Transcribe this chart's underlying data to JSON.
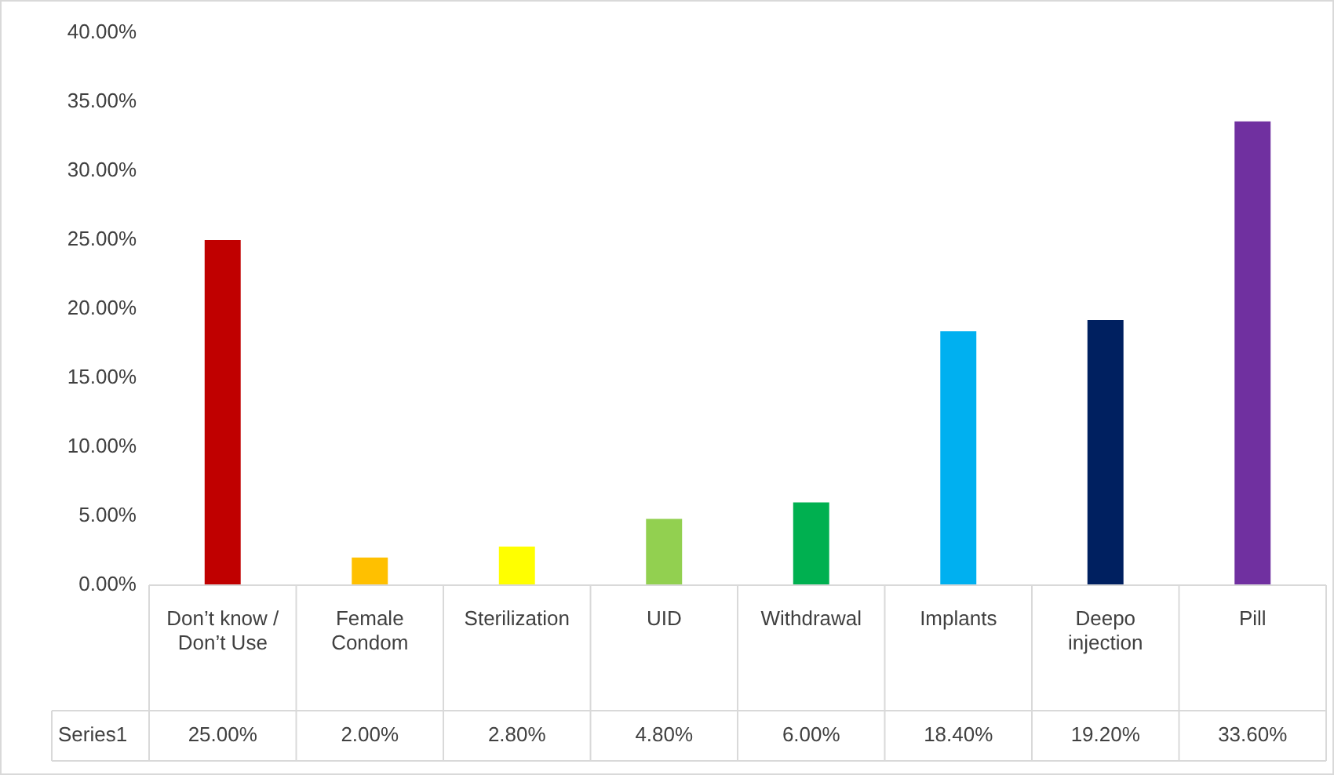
{
  "chart_data": {
    "type": "bar",
    "categories": [
      "Don’t know / Don’t Use",
      "Female Condom",
      "Sterilization",
      "UID",
      "Withdrawal",
      "Implants",
      "Deepo injection",
      "Pill"
    ],
    "series": [
      {
        "name": "Series1",
        "colors": [
          "#c00000",
          "#ffc000",
          "#ffff00",
          "#92d050",
          "#00b050",
          "#00b0f0",
          "#002060",
          "#7030a0"
        ],
        "values": [
          25,
          2,
          2.8,
          4.8,
          6,
          18.4,
          19.2,
          33.6
        ],
        "value_labels": [
          "25.00%",
          "2.00%",
          "2.80%",
          "4.80%",
          "6.00%",
          "18.40%",
          "19.20%",
          "33.60%"
        ]
      }
    ],
    "ylim": [
      0,
      40
    ],
    "yticks": [
      {
        "value": 0,
        "label": "0.00%"
      },
      {
        "value": 5,
        "label": "5.00%"
      },
      {
        "value": 10,
        "label": "10.00%"
      },
      {
        "value": 15,
        "label": "15.00%"
      },
      {
        "value": 20,
        "label": "20.00%"
      },
      {
        "value": 25,
        "label": "25.00%"
      },
      {
        "value": 30,
        "label": "30.00%"
      },
      {
        "value": 35,
        "label": "35.00%"
      },
      {
        "value": 40,
        "label": "40.00%"
      }
    ],
    "grid": false,
    "legend": false
  }
}
